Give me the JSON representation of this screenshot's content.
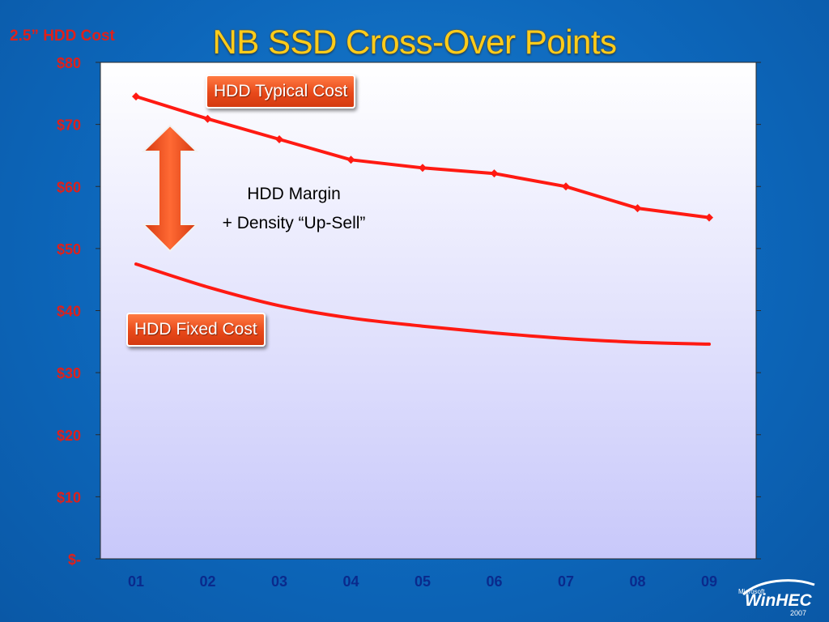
{
  "slide": {
    "title": "NB SSD Cross-Over Points"
  },
  "logo": {
    "small_text": "Microsoft",
    "name": "WinHEC",
    "year": "2007"
  },
  "annotations": {
    "typical_callout": "HDD Typical Cost",
    "fixed_callout": "HDD Fixed Cost",
    "margin_line1": "HDD Margin",
    "margin_line2": "+ Density “Up-Sell”",
    "arrow_icon": "double-arrow-icon"
  },
  "colors": {
    "series_line": "#ff1a12",
    "axis_label": "#e0201a",
    "title": "#ffcc1a",
    "callout_fill": "#e8491a"
  },
  "chart_data": {
    "type": "line",
    "title": "",
    "ylabel": "2.5” HDD Cost",
    "xlabel": "",
    "categories": [
      "01",
      "02",
      "03",
      "04",
      "05",
      "06",
      "07",
      "08",
      "09"
    ],
    "ylim": [
      0,
      80
    ],
    "y_ticks": [
      0,
      10,
      20,
      30,
      40,
      50,
      60,
      70,
      80
    ],
    "y_tick_labels": [
      "$-",
      "$10",
      "$20",
      "$30",
      "$40",
      "$50",
      "$60",
      "$70",
      "$80"
    ],
    "grid": false,
    "series": [
      {
        "name": "HDD Typical Cost",
        "values": [
          74.5,
          70.9,
          67.6,
          64.3,
          63.0,
          62.1,
          60.0,
          56.5,
          55.0
        ],
        "markers": true
      },
      {
        "name": "HDD Fixed Cost",
        "values": [
          47.5,
          43.8,
          40.8,
          38.8,
          37.5,
          36.4,
          35.5,
          34.9,
          34.6
        ],
        "markers": false
      }
    ]
  }
}
